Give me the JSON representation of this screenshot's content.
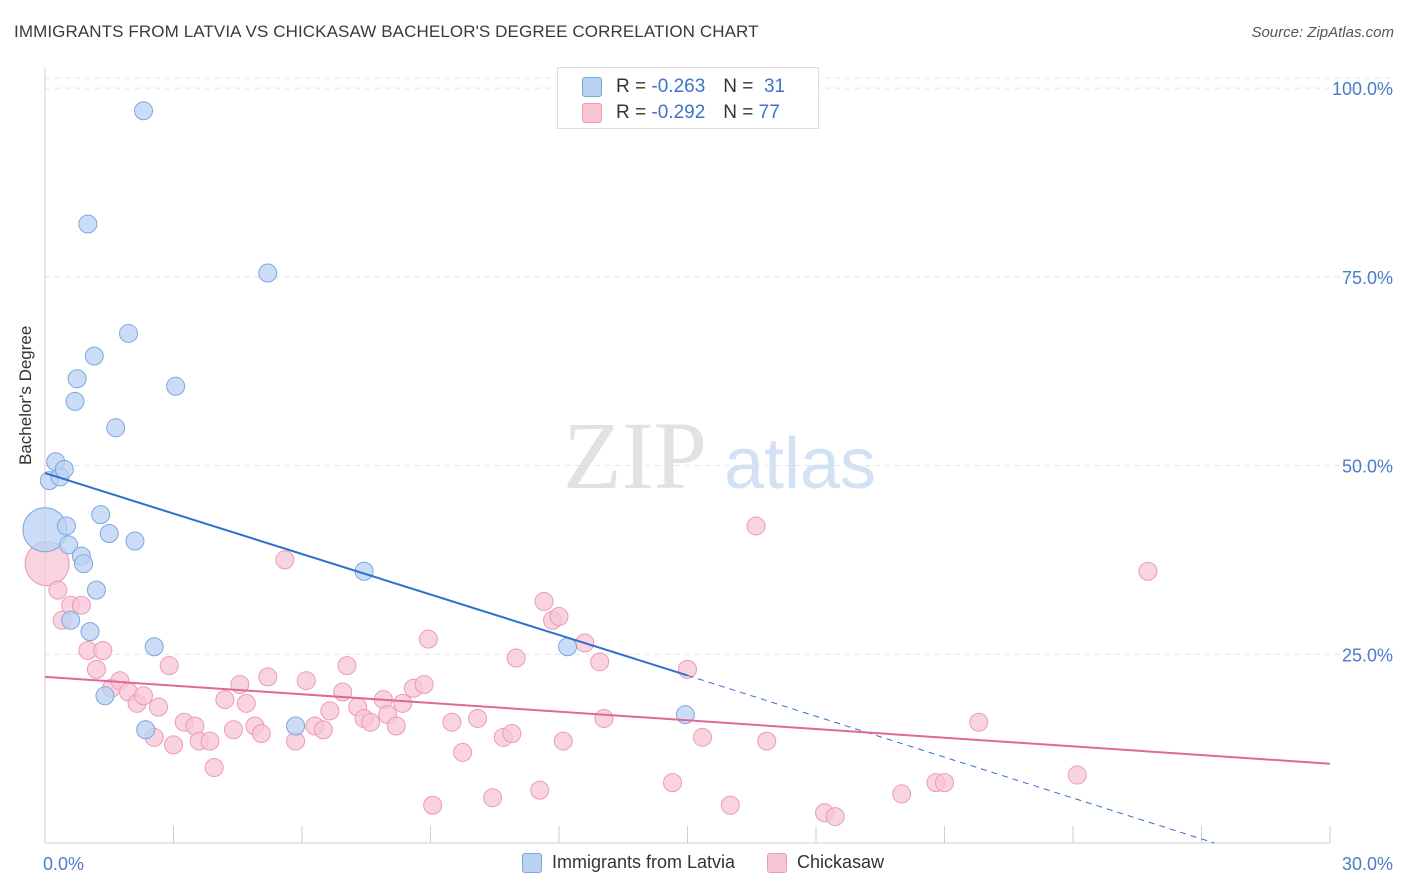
{
  "title": "IMMIGRANTS FROM LATVIA VS CHICKASAW BACHELOR'S DEGREE CORRELATION CHART",
  "source": "Source: ZipAtlas.com",
  "watermark": {
    "zip": "ZIP",
    "atlas": "atlas"
  },
  "legend_top": [
    {
      "r_label": "R =",
      "r_value": "-0.263",
      "n_label": "N =",
      "n_value": "31"
    },
    {
      "r_label": "R =",
      "r_value": "-0.292",
      "n_label": "N =",
      "n_value": "77"
    }
  ],
  "colors": {
    "blue_fill": "#b9d1f3",
    "blue_stroke": "#7ea6e0",
    "blue_line": "#2f6fcf",
    "pink_fill": "#f7c6d6",
    "pink_stroke": "#ec9ab6",
    "pink_line": "#e0679a",
    "tick_label": "#4a7cc9",
    "grid": "#e4e4e4"
  },
  "chart_data": {
    "type": "scatter",
    "title": "IMMIGRANTS FROM LATVIA VS CHICKASAW BACHELOR'S DEGREE CORRELATION CHART",
    "xlabel": "",
    "ylabel": "Bachelor's Degree",
    "xlim": [
      0,
      30
    ],
    "ylim": [
      0,
      102
    ],
    "x_tick_labels": [
      "0.0%",
      "30.0%"
    ],
    "y_ticks": [
      25,
      50,
      75,
      100
    ],
    "y_tick_labels": [
      "25.0%",
      "50.0%",
      "75.0%",
      "100.0%"
    ],
    "grid": true,
    "legend_position": "bottom",
    "series": [
      {
        "name": "Immigrants from Latvia",
        "color": "#b9d1f3",
        "trend": {
          "x": [
            0,
            15
          ],
          "y": [
            49,
            22.2
          ],
          "dashed_to": [
            27.3,
            0
          ]
        },
        "points": [
          {
            "x": 0.0,
            "y": 41.5,
            "big": true
          },
          {
            "x": 0.1,
            "y": 48.0
          },
          {
            "x": 0.25,
            "y": 50.5
          },
          {
            "x": 0.35,
            "y": 48.5
          },
          {
            "x": 0.45,
            "y": 49.5
          },
          {
            "x": 0.5,
            "y": 42.0
          },
          {
            "x": 0.55,
            "y": 39.5
          },
          {
            "x": 0.6,
            "y": 29.5
          },
          {
            "x": 0.7,
            "y": 58.5
          },
          {
            "x": 0.75,
            "y": 61.5
          },
          {
            "x": 0.85,
            "y": 38.0
          },
          {
            "x": 0.9,
            "y": 37.0
          },
          {
            "x": 1.0,
            "y": 82.0
          },
          {
            "x": 1.05,
            "y": 28.0
          },
          {
            "x": 1.15,
            "y": 64.5
          },
          {
            "x": 1.2,
            "y": 33.5
          },
          {
            "x": 1.3,
            "y": 43.5
          },
          {
            "x": 1.4,
            "y": 19.5
          },
          {
            "x": 1.5,
            "y": 41.0
          },
          {
            "x": 1.65,
            "y": 55.0
          },
          {
            "x": 1.95,
            "y": 67.5
          },
          {
            "x": 2.1,
            "y": 40.0
          },
          {
            "x": 2.3,
            "y": 97.0
          },
          {
            "x": 2.35,
            "y": 15.0
          },
          {
            "x": 2.55,
            "y": 26.0
          },
          {
            "x": 3.05,
            "y": 60.5
          },
          {
            "x": 5.2,
            "y": 75.5
          },
          {
            "x": 5.85,
            "y": 15.5
          },
          {
            "x": 7.45,
            "y": 36.0
          },
          {
            "x": 14.95,
            "y": 17.0
          },
          {
            "x": 12.2,
            "y": 26.0
          }
        ]
      },
      {
        "name": "Chickasaw",
        "color": "#f7c6d6",
        "trend": {
          "x": [
            0,
            30
          ],
          "y": [
            22,
            10.5
          ]
        },
        "points": [
          {
            "x": 0.05,
            "y": 37.0,
            "big": true
          },
          {
            "x": 0.3,
            "y": 33.5
          },
          {
            "x": 0.4,
            "y": 29.5
          },
          {
            "x": 0.6,
            "y": 31.5
          },
          {
            "x": 0.85,
            "y": 31.5
          },
          {
            "x": 1.0,
            "y": 25.5
          },
          {
            "x": 1.2,
            "y": 23.0
          },
          {
            "x": 1.35,
            "y": 25.5
          },
          {
            "x": 1.55,
            "y": 20.5
          },
          {
            "x": 1.75,
            "y": 21.5
          },
          {
            "x": 1.95,
            "y": 20.0
          },
          {
            "x": 2.15,
            "y": 18.5
          },
          {
            "x": 2.3,
            "y": 19.5
          },
          {
            "x": 2.55,
            "y": 14.0
          },
          {
            "x": 2.65,
            "y": 18.0
          },
          {
            "x": 2.9,
            "y": 23.5
          },
          {
            "x": 3.0,
            "y": 13.0
          },
          {
            "x": 3.25,
            "y": 16.0
          },
          {
            "x": 3.5,
            "y": 15.5
          },
          {
            "x": 3.6,
            "y": 13.5
          },
          {
            "x": 3.85,
            "y": 13.5
          },
          {
            "x": 3.95,
            "y": 10.0
          },
          {
            "x": 4.2,
            "y": 19.0
          },
          {
            "x": 4.4,
            "y": 15.0
          },
          {
            "x": 4.55,
            "y": 21.0
          },
          {
            "x": 4.7,
            "y": 18.5
          },
          {
            "x": 4.9,
            "y": 15.5
          },
          {
            "x": 5.05,
            "y": 14.5
          },
          {
            "x": 5.2,
            "y": 22.0
          },
          {
            "x": 5.6,
            "y": 37.5
          },
          {
            "x": 5.85,
            "y": 13.5
          },
          {
            "x": 6.1,
            "y": 21.5
          },
          {
            "x": 6.3,
            "y": 15.5
          },
          {
            "x": 6.5,
            "y": 15.0
          },
          {
            "x": 6.65,
            "y": 17.5
          },
          {
            "x": 6.95,
            "y": 20.0
          },
          {
            "x": 7.05,
            "y": 23.5
          },
          {
            "x": 7.3,
            "y": 18.0
          },
          {
            "x": 7.45,
            "y": 16.5
          },
          {
            "x": 7.6,
            "y": 16.0
          },
          {
            "x": 7.9,
            "y": 19.0
          },
          {
            "x": 8.0,
            "y": 17.0
          },
          {
            "x": 8.2,
            "y": 15.5
          },
          {
            "x": 8.35,
            "y": 18.5
          },
          {
            "x": 8.6,
            "y": 20.5
          },
          {
            "x": 8.85,
            "y": 21.0
          },
          {
            "x": 8.95,
            "y": 27.0
          },
          {
            "x": 9.05,
            "y": 5.0
          },
          {
            "x": 9.5,
            "y": 16.0
          },
          {
            "x": 9.75,
            "y": 12.0
          },
          {
            "x": 10.1,
            "y": 16.5
          },
          {
            "x": 10.45,
            "y": 6.0
          },
          {
            "x": 10.7,
            "y": 14.0
          },
          {
            "x": 10.9,
            "y": 14.5
          },
          {
            "x": 11.0,
            "y": 24.5
          },
          {
            "x": 11.55,
            "y": 7.0
          },
          {
            "x": 11.65,
            "y": 32.0
          },
          {
            "x": 11.85,
            "y": 29.5
          },
          {
            "x": 12.0,
            "y": 30.0
          },
          {
            "x": 12.1,
            "y": 13.5
          },
          {
            "x": 12.6,
            "y": 26.5
          },
          {
            "x": 12.95,
            "y": 24.0
          },
          {
            "x": 13.05,
            "y": 16.5
          },
          {
            "x": 14.65,
            "y": 8.0
          },
          {
            "x": 15.0,
            "y": 23.0
          },
          {
            "x": 15.35,
            "y": 14.0
          },
          {
            "x": 16.0,
            "y": 5.0
          },
          {
            "x": 16.6,
            "y": 42.0
          },
          {
            "x": 16.85,
            "y": 13.5
          },
          {
            "x": 18.2,
            "y": 4.0
          },
          {
            "x": 18.45,
            "y": 3.5
          },
          {
            "x": 20.0,
            "y": 6.5
          },
          {
            "x": 20.8,
            "y": 8.0
          },
          {
            "x": 21.0,
            "y": 8.0
          },
          {
            "x": 21.8,
            "y": 16.0
          },
          {
            "x": 24.1,
            "y": 9.0
          },
          {
            "x": 25.75,
            "y": 36.0
          }
        ]
      }
    ]
  }
}
